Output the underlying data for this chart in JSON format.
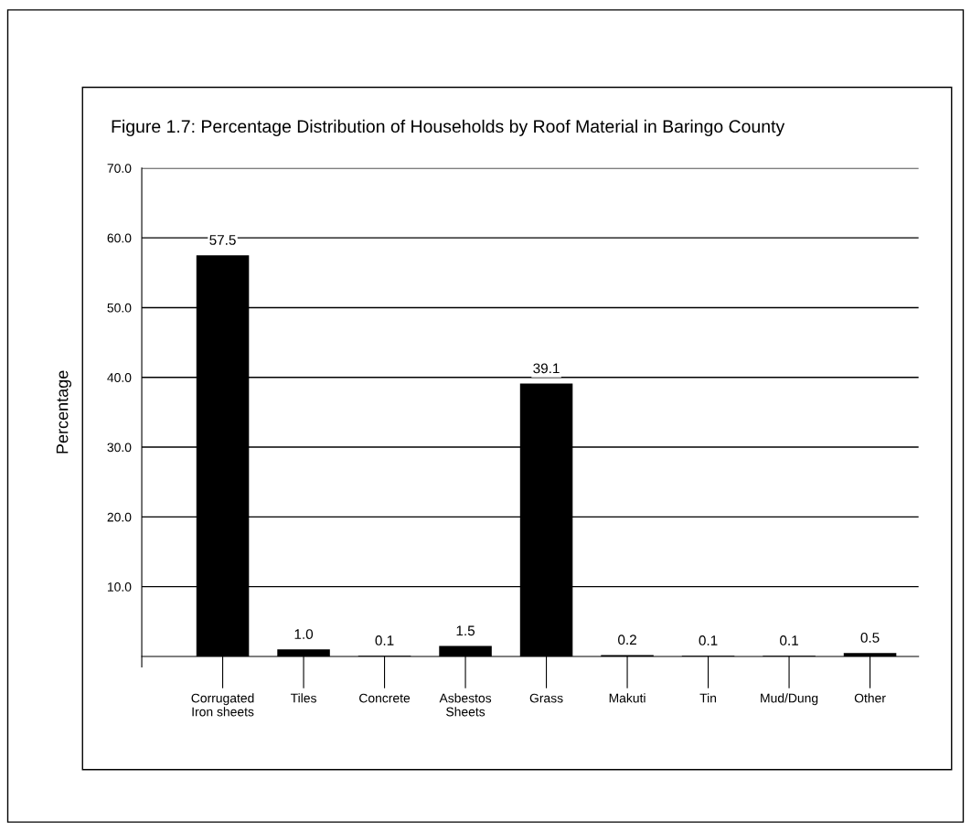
{
  "chart_data": {
    "type": "bar",
    "title": "Figure 1.7: Percentage Distribution of Households by Roof Material in Baringo County",
    "ylabel": "Percentage",
    "categories": [
      "Corrugated\nIron sheets",
      "Tiles",
      "Concrete",
      "Asbestos\nSheets",
      "Grass",
      "Makuti",
      "Tin",
      "Mud/Dung",
      "Other"
    ],
    "values": [
      57.5,
      1.0,
      0.1,
      1.5,
      39.1,
      0.2,
      0.1,
      0.1,
      0.5
    ],
    "value_labels": [
      "57.5",
      "1.0",
      "0.1",
      "1.5",
      "39.1",
      "0.2",
      "0.1",
      "0.1",
      "0.5"
    ],
    "color": "#000000",
    "ylim": [
      0,
      70
    ],
    "yticks": [
      {
        "value": 10,
        "label": "10.0"
      },
      {
        "value": 20,
        "label": "20.0"
      },
      {
        "value": 30,
        "label": "30.0"
      },
      {
        "value": 40,
        "label": "40.0"
      },
      {
        "value": 50,
        "label": "50.0"
      },
      {
        "value": 60,
        "label": "60.0"
      },
      {
        "value": 70,
        "label": "70.0"
      }
    ],
    "grid": "y"
  }
}
